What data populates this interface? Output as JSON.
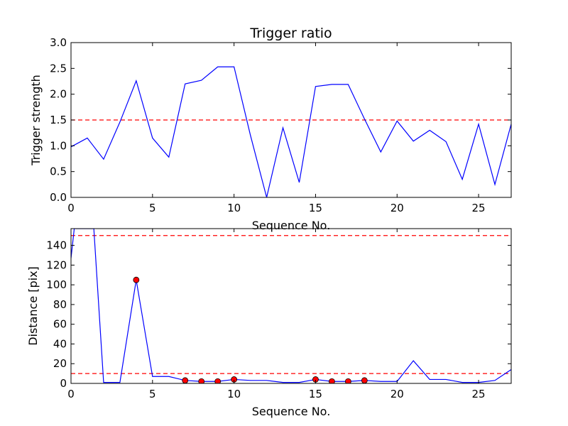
{
  "chart_data": [
    {
      "type": "line",
      "title": "Trigger ratio",
      "xlabel": "Sequence No.",
      "ylabel": "Trigger strength",
      "xlim": [
        0,
        27
      ],
      "ylim": [
        0,
        3.0
      ],
      "xticks": [
        0,
        5,
        10,
        15,
        20,
        25
      ],
      "yticks": [
        0.0,
        0.5,
        1.0,
        1.5,
        2.0,
        2.5,
        3.0
      ],
      "ytick_labels": [
        "0.0",
        "0.5",
        "1.0",
        "1.5",
        "2.0",
        "2.5",
        "3.0"
      ],
      "grid": false,
      "series": [
        {
          "color": "#0000ff",
          "x": [
            0,
            1,
            2,
            3,
            4,
            5,
            6,
            7,
            8,
            9,
            10,
            11,
            12,
            13,
            14,
            15,
            16,
            17,
            18,
            19,
            20,
            21,
            22,
            23,
            24,
            25,
            26,
            27
          ],
          "values": [
            0.98,
            1.15,
            0.74,
            1.46,
            2.26,
            1.15,
            0.78,
            2.2,
            2.27,
            2.53,
            2.53,
            1.21,
            0.0,
            1.35,
            0.29,
            2.15,
            2.19,
            2.19,
            1.52,
            0.88,
            1.48,
            1.09,
            1.3,
            1.08,
            0.35,
            1.42,
            0.25,
            1.42
          ]
        }
      ],
      "threshold": {
        "value": 1.5,
        "color": "#ff0000"
      }
    },
    {
      "type": "line",
      "title": "",
      "xlabel": "Sequence No.",
      "ylabel": "Distance [pix]",
      "xlim": [
        0,
        27
      ],
      "ylim": [
        0,
        157
      ],
      "xticks": [
        0,
        5,
        10,
        15,
        20,
        25
      ],
      "yticks": [
        0,
        20,
        40,
        60,
        80,
        100,
        120,
        140
      ],
      "ytick_labels": [
        "0",
        "20",
        "40",
        "60",
        "80",
        "100",
        "120",
        "140"
      ],
      "grid": false,
      "series": [
        {
          "color": "#0000ff",
          "x": [
            0,
            0.2,
            1.4,
            2,
            3,
            4,
            5,
            6,
            7,
            8,
            9,
            10,
            11,
            12,
            13,
            14,
            15,
            16,
            17,
            18,
            19,
            20,
            21,
            22,
            23,
            24,
            25,
            26,
            27
          ],
          "values": [
            127,
            157,
            157,
            1,
            1,
            105,
            7,
            7,
            3,
            2,
            2,
            4,
            3,
            3,
            1,
            1,
            4,
            2,
            2,
            3,
            2,
            2,
            23,
            4,
            4,
            1,
            1,
            3,
            14
          ]
        }
      ],
      "markers": {
        "color": "#ff0000",
        "x": [
          4,
          7,
          8,
          9,
          10,
          15,
          16,
          17,
          18
        ],
        "values": [
          105,
          3,
          2,
          2,
          4,
          4,
          2,
          2,
          3
        ]
      },
      "thresholds": [
        {
          "value": 150,
          "color": "#ff0000"
        },
        {
          "value": 10,
          "color": "#ff0000"
        }
      ]
    }
  ]
}
